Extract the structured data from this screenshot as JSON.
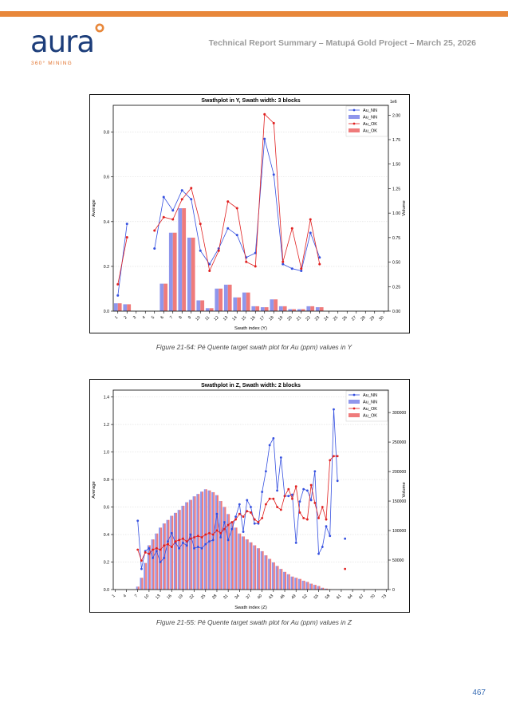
{
  "header": {
    "logo_text": "aura",
    "logo_sub": "360° MINING",
    "title": "Technical Report Summary – Matupá Gold Project – March 25, 2026",
    "bar_color": "#e8873a",
    "logo_color": "#1c3d7a"
  },
  "captions": {
    "fig1": "Figure 21-54: Pé Quente target swath plot for Au (ppm) values in Y",
    "fig2": "Figure 21-55: Pé Quente target swath plot for Au (ppm) values in Z"
  },
  "page_number": "467",
  "chart_data": [
    {
      "type": "bar+line",
      "title": "Swathplot in Y, Swath width: 3 blocks",
      "xlabel": "Swath index (Y)",
      "ylabel": "Average",
      "y2label": "Volume",
      "y2_offset_text": "1e6",
      "ylim": [
        0,
        0.92
      ],
      "yticks": [
        "0.0",
        "0.2",
        "0.4",
        "0.6",
        "0.8"
      ],
      "y2lim": [
        0,
        2.1
      ],
      "y2ticks": [
        "0.00",
        "0.25",
        "0.50",
        "0.75",
        "1.00",
        "1.25",
        "1.50",
        "1.75",
        "2.00"
      ],
      "categories": [
        "1",
        "2",
        "3",
        "4",
        "5",
        "6",
        "7",
        "8",
        "9",
        "10",
        "11",
        "12",
        "13",
        "14",
        "15",
        "16",
        "17",
        "18",
        "19",
        "20",
        "21",
        "22",
        "23",
        "24",
        "25",
        "26",
        "27",
        "28",
        "29",
        "30"
      ],
      "legend": [
        "Au_NN",
        "Au_NN",
        "Au_OK",
        "Au_OK"
      ],
      "colors": {
        "nn_line": "#3550e0",
        "nn_bar": "#8f96ec",
        "ok_line": "#e02020",
        "ok_bar": "#ef7b7b"
      },
      "series": [
        {
          "name": "Au_NN",
          "kind": "line",
          "values": [
            0.07,
            0.39,
            null,
            null,
            0.28,
            0.51,
            0.45,
            0.54,
            0.5,
            0.27,
            0.21,
            0.28,
            0.37,
            0.34,
            0.24,
            0.26,
            0.77,
            0.61,
            0.21,
            0.19,
            0.18,
            0.35,
            0.24,
            null,
            null,
            null,
            null,
            null,
            null,
            null
          ]
        },
        {
          "name": "Au_NN",
          "kind": "bar",
          "values": [
            0.08,
            0.07,
            0,
            0,
            0,
            0.28,
            0.8,
            1.05,
            0.75,
            0.11,
            0.03,
            0.23,
            0.27,
            0.14,
            0.19,
            0.05,
            0.04,
            0.12,
            0.05,
            0.02,
            0.02,
            0.05,
            0.04,
            0,
            0,
            0,
            0,
            0,
            0,
            0
          ]
        },
        {
          "name": "Au_OK",
          "kind": "line",
          "values": [
            0.12,
            0.33,
            null,
            null,
            0.36,
            0.42,
            0.41,
            0.5,
            0.55,
            0.39,
            0.18,
            0.27,
            0.49,
            0.46,
            0.22,
            0.2,
            0.88,
            0.84,
            0.22,
            0.37,
            0.19,
            0.41,
            0.21,
            null,
            null,
            null,
            null,
            null,
            null,
            null
          ]
        },
        {
          "name": "Au_OK",
          "kind": "bar",
          "values": [
            0.08,
            0.07,
            0,
            0,
            0,
            0.28,
            0.8,
            1.05,
            0.75,
            0.11,
            0.03,
            0.23,
            0.27,
            0.14,
            0.19,
            0.05,
            0.04,
            0.12,
            0.05,
            0.02,
            0.02,
            0.05,
            0.04,
            0,
            0,
            0,
            0,
            0,
            0,
            0
          ]
        }
      ]
    },
    {
      "type": "bar+line",
      "title": "Swathplot in Z, Swath width: 2 blocks",
      "xlabel": "Swath index (Z)",
      "ylabel": "Average",
      "y2label": "Volume",
      "ylim": [
        0,
        1.45
      ],
      "yticks": [
        "0.0",
        "0.2",
        "0.4",
        "0.6",
        "0.8",
        "1.0",
        "1.2",
        "1.4"
      ],
      "y2lim": [
        0,
        338000
      ],
      "y2ticks": [
        "0",
        "50000",
        "100000",
        "150000",
        "200000",
        "250000",
        "300000"
      ],
      "categories": [
        "1",
        "2",
        "3",
        "4",
        "5",
        "6",
        "7",
        "8",
        "9",
        "10",
        "11",
        "12",
        "13",
        "14",
        "15",
        "16",
        "17",
        "18",
        "19",
        "20",
        "21",
        "22",
        "23",
        "24",
        "25",
        "26",
        "27",
        "28",
        "29",
        "30",
        "31",
        "32",
        "33",
        "34",
        "35",
        "36",
        "37",
        "38",
        "39",
        "40",
        "41",
        "42",
        "43",
        "44",
        "45",
        "46",
        "47",
        "48",
        "49",
        "50",
        "51",
        "52",
        "53",
        "54",
        "55",
        "56",
        "57",
        "58",
        "59",
        "60",
        "61",
        "62",
        "63",
        "64",
        "65",
        "66",
        "67",
        "68",
        "69",
        "70",
        "71",
        "72",
        "73"
      ],
      "xtick_labels": [
        "1",
        "4",
        "7",
        "10",
        "13",
        "16",
        "19",
        "22",
        "25",
        "28",
        "31",
        "34",
        "37",
        "40",
        "43",
        "46",
        "49",
        "52",
        "55",
        "58",
        "61",
        "64",
        "67",
        "70",
        "73"
      ],
      "legend": [
        "Au_NN",
        "Au_NN",
        "Au_OK",
        "Au_OK"
      ],
      "colors": {
        "nn_line": "#3550e0",
        "nn_bar": "#8f96ec",
        "ok_line": "#e02020",
        "ok_bar": "#ef7b7b"
      },
      "series": [
        {
          "name": "Au_NN",
          "kind": "line",
          "values": [
            null,
            null,
            null,
            null,
            null,
            null,
            0.5,
            0.15,
            0.28,
            0.3,
            0.23,
            0.28,
            0.2,
            0.23,
            0.35,
            0.41,
            0.34,
            0.3,
            0.34,
            0.32,
            0.4,
            0.3,
            0.31,
            0.3,
            0.33,
            0.35,
            0.36,
            0.55,
            0.38,
            0.49,
            0.36,
            0.44,
            0.53,
            0.62,
            0.42,
            0.65,
            0.6,
            0.48,
            0.48,
            0.71,
            0.86,
            1.05,
            1.1,
            0.72,
            0.96,
            0.68,
            0.68,
            0.69,
            0.34,
            0.64,
            0.73,
            0.72,
            0.65,
            0.86,
            0.26,
            0.31,
            0.46,
            0.39,
            1.31,
            0.79,
            null,
            0.37,
            null,
            null,
            null,
            null,
            null,
            null,
            null,
            null,
            null,
            null,
            null
          ]
        },
        {
          "name": "Au_NN",
          "kind": "bar",
          "values": [
            0,
            0,
            0,
            0,
            0,
            0,
            5000,
            20000,
            45000,
            75000,
            85000,
            95000,
            105000,
            112000,
            118000,
            125000,
            130000,
            135000,
            142000,
            148000,
            152000,
            158000,
            162000,
            166000,
            170000,
            168000,
            165000,
            160000,
            150000,
            140000,
            128000,
            115000,
            105000,
            95000,
            90000,
            85000,
            80000,
            75000,
            70000,
            65000,
            58000,
            52000,
            46000,
            40000,
            35000,
            30000,
            26000,
            22000,
            20000,
            18000,
            15000,
            13000,
            10000,
            8000,
            6000,
            3000,
            1500,
            500,
            0,
            0,
            0,
            0,
            0,
            0,
            0,
            0,
            0,
            0,
            0,
            0,
            0,
            0,
            0
          ]
        },
        {
          "name": "Au_OK",
          "kind": "line",
          "values": [
            null,
            null,
            null,
            null,
            null,
            null,
            0.29,
            0.21,
            0.27,
            0.26,
            0.29,
            0.3,
            0.29,
            0.32,
            0.33,
            0.31,
            0.35,
            0.36,
            0.37,
            0.35,
            0.37,
            0.38,
            0.39,
            0.38,
            0.4,
            0.41,
            0.4,
            0.43,
            0.41,
            0.44,
            0.47,
            0.49,
            0.51,
            0.55,
            0.53,
            0.57,
            0.56,
            0.51,
            0.49,
            0.52,
            0.62,
            0.66,
            0.66,
            0.6,
            0.58,
            0.68,
            0.73,
            0.66,
            0.75,
            0.56,
            0.52,
            0.51,
            0.76,
            0.63,
            0.52,
            0.6,
            0.51,
            0.94,
            0.97,
            0.97,
            null,
            0.15,
            null,
            null,
            null,
            null,
            null,
            null,
            null,
            null,
            null,
            null,
            null
          ]
        },
        {
          "name": "Au_OK",
          "kind": "bar",
          "values": [
            0,
            0,
            0,
            0,
            0,
            0,
            5000,
            20000,
            45000,
            75000,
            85000,
            95000,
            105000,
            112000,
            118000,
            125000,
            130000,
            135000,
            142000,
            148000,
            152000,
            158000,
            162000,
            166000,
            170000,
            168000,
            165000,
            160000,
            150000,
            140000,
            128000,
            115000,
            105000,
            95000,
            90000,
            85000,
            80000,
            75000,
            70000,
            65000,
            58000,
            52000,
            46000,
            40000,
            35000,
            30000,
            26000,
            22000,
            20000,
            18000,
            15000,
            13000,
            10000,
            8000,
            6000,
            3000,
            1500,
            500,
            0,
            0,
            0,
            0,
            0,
            0,
            0,
            0,
            0,
            0,
            0,
            0,
            0,
            0,
            0
          ]
        }
      ]
    }
  ]
}
